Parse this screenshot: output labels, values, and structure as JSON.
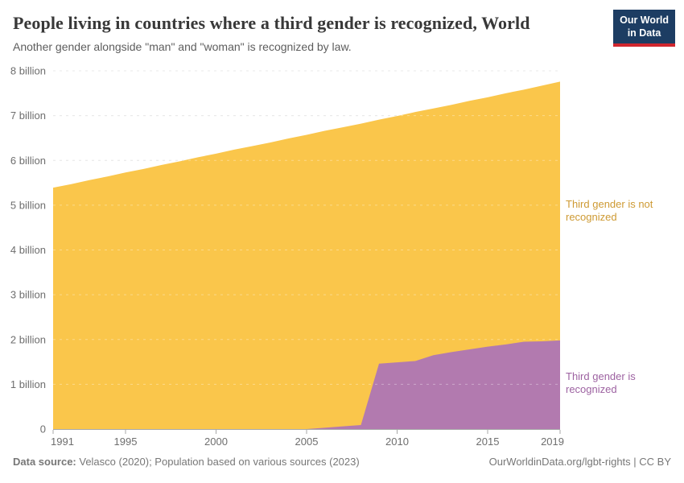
{
  "header": {
    "title": "People living in countries where a third gender is recognized, World",
    "subtitle": "Another gender alongside \"man\" and \"woman\" is recognized by law.",
    "logo": {
      "line1": "Our World",
      "line2": "in Data",
      "bg_color": "#1d3d63",
      "bar_color": "#d0262e"
    }
  },
  "chart_data": {
    "type": "area",
    "stacked": true,
    "title": "People living in countries where a third gender is recognized, World",
    "xlabel": "",
    "ylabel": "",
    "unit": "billion people",
    "grid": true,
    "legend_position": "right-annotations",
    "ylim": [
      0,
      8
    ],
    "x": [
      1991,
      1992,
      1993,
      1994,
      1995,
      1996,
      1997,
      1998,
      1999,
      2000,
      2001,
      2002,
      2003,
      2004,
      2005,
      2006,
      2007,
      2008,
      2009,
      2010,
      2011,
      2012,
      2013,
      2014,
      2015,
      2016,
      2017,
      2018,
      2019
    ],
    "series": [
      {
        "name": "Third gender is recognized",
        "color": "#B27AAF",
        "label_color": "#9D62A1",
        "values": [
          0,
          0,
          0,
          0,
          0,
          0,
          0,
          0,
          0,
          0,
          0,
          0,
          0,
          0,
          0,
          0.03,
          0.06,
          0.09,
          1.46,
          1.49,
          1.52,
          1.65,
          1.72,
          1.78,
          1.84,
          1.89,
          1.95,
          1.96,
          1.98
        ]
      },
      {
        "name": "Third gender is not recognized",
        "color": "#FAC64B",
        "label_color": "#CE9A33",
        "values": [
          5.39,
          5.47,
          5.56,
          5.64,
          5.73,
          5.81,
          5.9,
          5.98,
          6.07,
          6.15,
          6.24,
          6.32,
          6.4,
          6.49,
          6.57,
          6.63,
          6.68,
          6.73,
          5.45,
          5.5,
          5.56,
          5.51,
          5.52,
          5.55,
          5.57,
          5.61,
          5.63,
          5.71,
          5.78
        ]
      }
    ],
    "yticks": [
      {
        "value": 0,
        "label": "0"
      },
      {
        "value": 1,
        "label": "1 billion"
      },
      {
        "value": 2,
        "label": "2 billion"
      },
      {
        "value": 3,
        "label": "3 billion"
      },
      {
        "value": 4,
        "label": "4 billion"
      },
      {
        "value": 5,
        "label": "5 billion"
      },
      {
        "value": 6,
        "label": "6 billion"
      },
      {
        "value": 7,
        "label": "7 billion"
      },
      {
        "value": 8,
        "label": "8 billion"
      }
    ],
    "xticks": [
      1991,
      1995,
      2000,
      2005,
      2010,
      2015,
      2019
    ]
  },
  "footer": {
    "source_label": "Data source:",
    "source_text": " Velasco (2020); Population based on various sources (2023)",
    "right_text": "OurWorldinData.org/lgbt-rights | CC BY"
  }
}
